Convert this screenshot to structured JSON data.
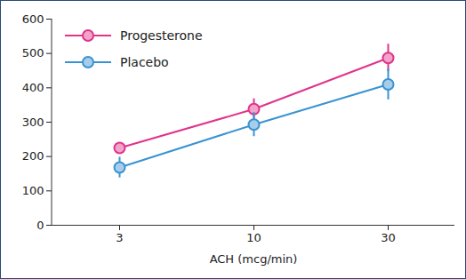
{
  "chart_data": {
    "type": "line",
    "x_label": "ACH (mcg/min)",
    "categories": [
      "3",
      "10",
      "30"
    ],
    "series": [
      {
        "name": "Progesterone",
        "color": "#e0338a",
        "marker": "circle",
        "values": [
          225,
          338,
          487
        ],
        "errors": [
          10,
          30,
          40
        ]
      },
      {
        "name": "Placebo",
        "color": "#3a93d1",
        "marker": "circle",
        "values": [
          168,
          293,
          410
        ],
        "errors": [
          30,
          35,
          45
        ]
      }
    ],
    "ylim": [
      0,
      600
    ],
    "yticks": [
      0,
      100,
      200,
      300,
      400,
      500,
      600
    ],
    "grid": false,
    "legend": "upper left"
  }
}
